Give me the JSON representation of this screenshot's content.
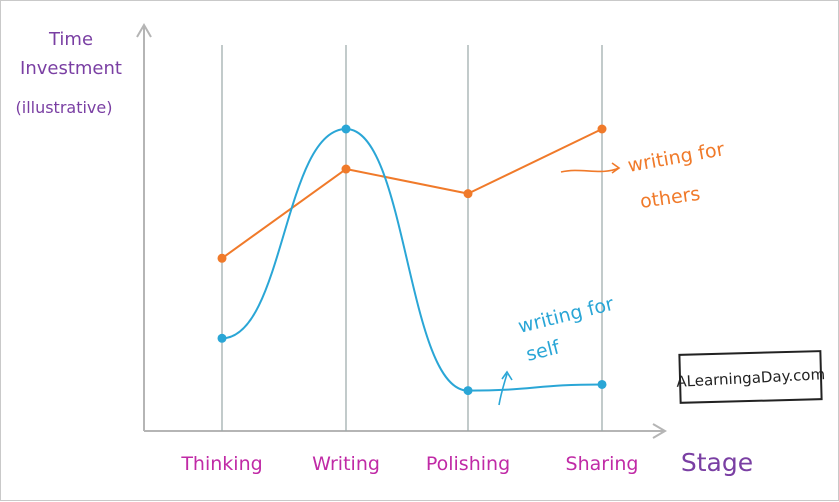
{
  "chart_data": {
    "type": "line",
    "ylabel": [
      "Time",
      "Investment",
      "(illustrative)"
    ],
    "xlabel": "Stage",
    "categories": [
      "Thinking",
      "Writing",
      "Polishing",
      "Sharing"
    ],
    "ylim": [
      0,
      10
    ],
    "grid": "vertical lines at categories",
    "series": [
      {
        "name": "writing for others",
        "label_lines": [
          "writing for",
          "others"
        ],
        "color": "#f07a2a",
        "values": [
          4.8,
          7.7,
          6.9,
          9.0
        ]
      },
      {
        "name": "writing for self",
        "label_lines": [
          "writing for",
          "self"
        ],
        "color": "#2aa6d6",
        "values": [
          2.2,
          9.0,
          0.5,
          0.7
        ]
      }
    ]
  },
  "watermark": "ALearningaDay.com",
  "colors": {
    "axis": "#b5b5b5",
    "gridline": "#9aa8a8",
    "ylabel": "#7a3fa3",
    "xlabel": "#7a3fa3",
    "tick_labels": "#c02aa6",
    "others": "#f07a2a",
    "self": "#2aa6d6"
  }
}
